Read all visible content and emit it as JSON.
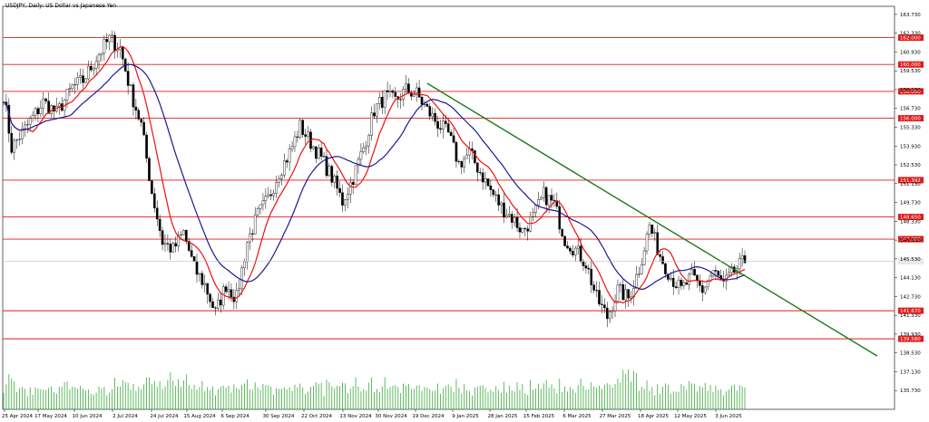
{
  "chart_data": {
    "type": "candlestick",
    "title": "USDJPY, Daily:  US Dollar vs Japanese Yen",
    "ylim": [
      134.33,
      164.33
    ],
    "y_ticks": [
      163.73,
      162.33,
      160.93,
      159.53,
      158.13,
      156.73,
      155.33,
      153.93,
      152.53,
      151.13,
      149.73,
      148.33,
      146.93,
      145.53,
      144.13,
      142.73,
      141.33,
      139.93,
      138.53,
      137.13,
      135.73
    ],
    "x_ticks": [
      "25 Apr 2024",
      "17 May 2024",
      "10 Jun 2024",
      "2 Jul 2024",
      "24 Jul 2024",
      "15 Aug 2024",
      "6 Sep 2024",
      "30 Sep 2024",
      "22 Oct 2024",
      "13 Nov 2024",
      "30 Nov 2024",
      "19 Dec 2024",
      "9 Jan 2025",
      "28 Jan 2025",
      "15 Feb 2025",
      "6 Mar 2025",
      "27 Mar 2025",
      "18 Apr 2025",
      "12 May 2025",
      "3 Jun 2025"
    ],
    "levels": [
      {
        "value": 162.0,
        "label": "162.000"
      },
      {
        "value": 160.0,
        "label": "160.000"
      },
      {
        "value": 158.0,
        "label": "158.000"
      },
      {
        "value": 156.0,
        "label": "156.000"
      },
      {
        "value": 151.392,
        "label": "151.392"
      },
      {
        "value": 148.65,
        "label": "148.650"
      },
      {
        "value": 147.0,
        "label": "147.000"
      },
      {
        "value": 141.67,
        "label": "141.670"
      },
      {
        "value": 139.58,
        "label": "139.580"
      }
    ],
    "current_price": 145.35,
    "anchors": [
      [
        0,
        157.8
      ],
      [
        3,
        153.8
      ],
      [
        8,
        155.2
      ],
      [
        15,
        157.2
      ],
      [
        20,
        156.4
      ],
      [
        26,
        158.3
      ],
      [
        30,
        158.8
      ],
      [
        36,
        160.8
      ],
      [
        40,
        161.9
      ],
      [
        44,
        161.2
      ],
      [
        48,
        158.0
      ],
      [
        52,
        155.5
      ],
      [
        56,
        150.5
      ],
      [
        60,
        146.8
      ],
      [
        64,
        146.2
      ],
      [
        68,
        147.5
      ],
      [
        72,
        144.8
      ],
      [
        76,
        143.6
      ],
      [
        80,
        141.5
      ],
      [
        84,
        143.6
      ],
      [
        88,
        142.6
      ],
      [
        92,
        146.8
      ],
      [
        96,
        148.8
      ],
      [
        100,
        150.0
      ],
      [
        104,
        152.0
      ],
      [
        108,
        153.4
      ],
      [
        112,
        155.4
      ],
      [
        116,
        154.2
      ],
      [
        120,
        153.0
      ],
      [
        124,
        151.6
      ],
      [
        128,
        149.8
      ],
      [
        132,
        151.6
      ],
      [
        136,
        153.8
      ],
      [
        140,
        156.6
      ],
      [
        144,
        157.6
      ],
      [
        148,
        157.3
      ],
      [
        152,
        158.1
      ],
      [
        156,
        157.8
      ],
      [
        160,
        156.6
      ],
      [
        164,
        155.6
      ],
      [
        168,
        154.8
      ],
      [
        172,
        152.6
      ],
      [
        176,
        153.4
      ],
      [
        180,
        152.0
      ],
      [
        184,
        150.6
      ],
      [
        188,
        149.4
      ],
      [
        192,
        148.6
      ],
      [
        196,
        147.6
      ],
      [
        200,
        148.6
      ],
      [
        204,
        150.3
      ],
      [
        208,
        149.6
      ],
      [
        212,
        147.0
      ],
      [
        216,
        146.2
      ],
      [
        220,
        145.2
      ],
      [
        224,
        142.6
      ],
      [
        228,
        141.2
      ],
      [
        232,
        143.2
      ],
      [
        236,
        142.6
      ],
      [
        240,
        144.8
      ],
      [
        244,
        148.0
      ],
      [
        248,
        145.8
      ],
      [
        252,
        144.2
      ],
      [
        256,
        143.2
      ],
      [
        260,
        144.2
      ],
      [
        264,
        143.2
      ],
      [
        268,
        144.6
      ],
      [
        272,
        143.6
      ],
      [
        276,
        144.6
      ],
      [
        280,
        145.4
      ]
    ],
    "trendline": {
      "start": [
        160,
        158.6
      ],
      "end": [
        330,
        138.3
      ]
    },
    "volume_scale": [
      0,
      100
    ]
  }
}
